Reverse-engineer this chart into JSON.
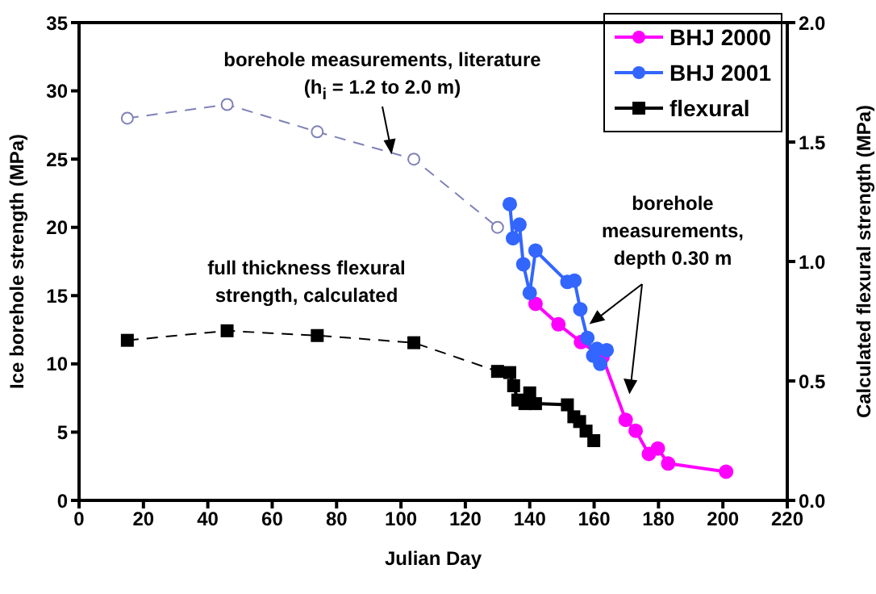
{
  "chart_data": {
    "type": "line",
    "xlabel": "Julian Day",
    "ylabel": "Ice borehole strength (MPa)",
    "y2label": "Calculated flexural strength (MPa)",
    "xlim": [
      0,
      220
    ],
    "xticks": [
      0,
      20,
      40,
      60,
      80,
      100,
      120,
      140,
      160,
      180,
      200,
      220
    ],
    "ylim": [
      0,
      35
    ],
    "yticks": [
      0,
      5,
      10,
      15,
      20,
      25,
      30,
      35
    ],
    "y2lim": [
      0,
      2
    ],
    "y2ticks": [
      {
        "value": 0,
        "label": "0.0"
      },
      {
        "value": 0.5,
        "label": "0.5"
      },
      {
        "value": 1,
        "label": "1.0"
      },
      {
        "value": 1.5,
        "label": "1.5"
      },
      {
        "value": 2,
        "label": "2.0"
      }
    ],
    "grid": false,
    "legend": "top right",
    "marker": "circle",
    "line_style": "solid",
    "annotations": [
      {
        "text": "borehole measurements, literature (h$_{i}$ = 1.2 to 2.0 m)",
        "x": 97,
        "y": 25.5
      },
      "full thickness flexural strength, calculated",
      {
        "text": "borehole measurements, depth 0.30 m",
        "x": 159,
        "y": 13
      }
    ],
    "series": [
      {
        "color": "#7f82b8",
        "marker": "circle",
        "line_style": "dashed",
        "x": [
          15,
          46,
          74,
          104,
          130
        ],
        "values": [
          28,
          29,
          27,
          25,
          20
        ]
      },
      {
        "name": "BHJ 2000",
        "color": "#ff00ff",
        "x": [
          141.8,
          148.9,
          155.9,
          162.6,
          169.8,
          172.9,
          177,
          179.8,
          183,
          201
        ],
        "values": [
          14.4,
          12.9,
          11.6,
          10.5,
          5.9,
          5.1,
          3.4,
          3.8,
          2.7,
          2.1
        ]
      },
      {
        "name": "BHJ 2001",
        "color": "#3366ff",
        "x": [
          133.8,
          134.8,
          136.8,
          138,
          140,
          141.8,
          151.7,
          153.9,
          155.7,
          157.9,
          159.7,
          160.9,
          161.9,
          163.9
        ],
        "values": [
          21.7,
          19.2,
          20.2,
          17.3,
          15.2,
          18.3,
          16.0,
          16.1,
          14.0,
          11.9,
          10.6,
          11.1,
          10.0,
          11.0
        ]
      },
      {
        "color": "#000000",
        "axis": "y2",
        "marker": "square",
        "line_style": "dashed",
        "x": [
          15,
          46,
          74,
          104,
          130
        ],
        "values": [
          0.67,
          0.71,
          0.69,
          0.66,
          0.54
        ]
      },
      {
        "name": "flexural",
        "color": "#000000",
        "axis": "y2",
        "marker": "square",
        "x": [
          133.8,
          135,
          136.3,
          138.5,
          140,
          141.8,
          151.7,
          153.7,
          155.5,
          157.5,
          159.9
        ],
        "values": [
          0.535,
          0.48,
          0.42,
          0.405,
          0.45,
          0.405,
          0.4,
          0.35,
          0.33,
          0.29,
          0.25
        ]
      }
    ]
  }
}
